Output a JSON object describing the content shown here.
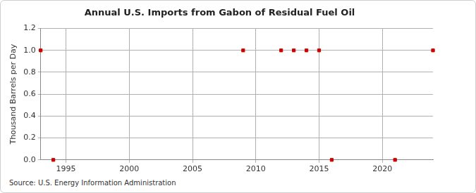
{
  "chart_data": {
    "type": "scatter",
    "title": "Annual U.S. Imports from Gabon of Residual Fuel Oil",
    "y_label": "Thousand Barrels per Day",
    "source": "Source: U.S. Energy Information Administration",
    "x": [
      1993,
      1994,
      2009,
      2012,
      2013,
      2014,
      2015,
      2016,
      2021,
      2024
    ],
    "values": [
      1.0,
      0.0,
      1.0,
      1.0,
      1.0,
      1.0,
      1.0,
      0.0,
      0.0,
      1.0
    ],
    "color": "#cc0000",
    "marker": "square",
    "xlim": [
      1993,
      2024
    ],
    "xticks": [
      1995,
      2000,
      2005,
      2010,
      2015,
      2020
    ],
    "ylim": [
      0,
      1.2
    ],
    "yticks": [
      {
        "value": 0,
        "label": "0.0"
      },
      {
        "value": 0.2,
        "label": "0.2"
      },
      {
        "value": 0.4,
        "label": "0.4"
      },
      {
        "value": 0.6,
        "label": "0.6"
      },
      {
        "value": 0.8,
        "label": "0.8"
      },
      {
        "value": 1.0,
        "label": "1.0"
      },
      {
        "value": 1.2,
        "label": "1.2"
      }
    ],
    "grid": true
  }
}
